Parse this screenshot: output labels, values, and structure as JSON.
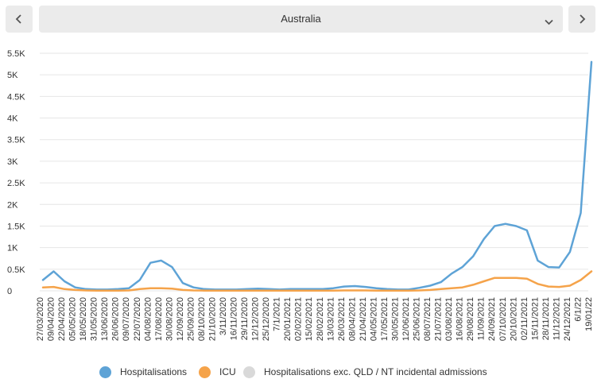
{
  "selector": {
    "value": "Australia"
  },
  "icons": {
    "prev": "chevron-left-icon",
    "next": "chevron-right-icon",
    "dropdown": "chevron-down-icon"
  },
  "colors": {
    "hospitalisations": "#5ea3d6",
    "icu": "#f5a34a",
    "excluded": "#d9d9d9",
    "grid": "#e6e6e6"
  },
  "chart_data": {
    "type": "line",
    "title": "",
    "xlabel": "",
    "ylabel": "",
    "ylim": [
      0,
      5500
    ],
    "y_ticks": [
      0,
      500,
      1000,
      1500,
      2000,
      2500,
      3000,
      3500,
      4000,
      4500,
      5000,
      5500
    ],
    "y_tick_labels": [
      "0",
      "0.5K",
      "1K",
      "1.5K",
      "2K",
      "2.5K",
      "3K",
      "3.5K",
      "4K",
      "4.5K",
      "5K",
      "5.5K"
    ],
    "grid": true,
    "legend_position": "bottom",
    "x_tick_labels": [
      "27/03/2020",
      "09/04/2020",
      "22/04/2020",
      "05/05/2020",
      "18/05/2020",
      "31/05/2020",
      "13/06/2020",
      "26/06/2020",
      "09/07/2020",
      "22/07/2020",
      "04/08/2020",
      "17/08/2020",
      "30/08/2020",
      "12/09/2020",
      "25/09/2020",
      "08/10/2020",
      "21/10/2020",
      "3/11/2020",
      "16/11/2020",
      "29/11/2020",
      "12/12/2020",
      "25/12/2020",
      "7/1/2021",
      "20/01/2021",
      "02/02/2021",
      "15/02/2021",
      "28/02/2021",
      "13/03/2021",
      "26/03/2021",
      "08/04/2021",
      "21/04/2021",
      "04/05/2021",
      "17/05/2021",
      "30/05/2021",
      "12/06/2021",
      "25/06/2021",
      "08/07/2021",
      "21/07/2021",
      "03/08/2021",
      "16/08/2021",
      "29/08/2021",
      "11/09/2021",
      "24/09/2021",
      "07/10/2021",
      "20/10/2021",
      "02/11/2021",
      "15/11/2021",
      "28/11/2021",
      "11/12/2021",
      "24/12/2021",
      "6/1/22",
      "19/01/22"
    ],
    "series": [
      {
        "name": "Hospitalisations",
        "color": "#5ea3d6",
        "x": [
          0,
          1,
          2,
          3,
          4,
          5,
          6,
          7,
          8,
          9,
          10,
          11,
          12,
          13,
          14,
          15,
          16,
          17,
          18,
          19,
          20,
          21,
          22,
          23,
          24,
          25,
          26,
          27,
          28,
          29,
          30,
          31,
          32,
          33,
          34,
          35,
          36,
          37,
          38,
          39,
          40,
          41,
          42,
          43,
          44,
          45,
          46,
          47,
          48,
          49,
          50,
          51
        ],
        "values": [
          250,
          450,
          220,
          80,
          40,
          30,
          30,
          40,
          60,
          250,
          650,
          700,
          550,
          180,
          80,
          40,
          30,
          30,
          30,
          40,
          50,
          40,
          30,
          40,
          40,
          40,
          40,
          60,
          100,
          110,
          90,
          60,
          40,
          30,
          30,
          70,
          120,
          200,
          400,
          550,
          800,
          1200,
          1500,
          1550,
          1500,
          1400,
          700,
          550,
          540,
          900,
          1800,
          5300
        ]
      },
      {
        "name": "ICU",
        "color": "#f5a34a",
        "x": [
          0,
          1,
          2,
          3,
          4,
          5,
          6,
          7,
          8,
          9,
          10,
          11,
          12,
          13,
          14,
          15,
          16,
          17,
          18,
          19,
          20,
          21,
          22,
          23,
          24,
          25,
          26,
          27,
          28,
          29,
          30,
          31,
          32,
          33,
          34,
          35,
          36,
          37,
          38,
          39,
          40,
          41,
          42,
          43,
          44,
          45,
          46,
          47,
          48,
          49,
          50,
          51
        ],
        "values": [
          80,
          90,
          40,
          20,
          10,
          5,
          5,
          5,
          10,
          40,
          60,
          60,
          50,
          20,
          10,
          5,
          5,
          5,
          5,
          5,
          5,
          5,
          5,
          5,
          5,
          5,
          5,
          5,
          10,
          10,
          10,
          5,
          5,
          5,
          5,
          10,
          20,
          40,
          60,
          80,
          140,
          220,
          300,
          300,
          300,
          280,
          160,
          100,
          90,
          120,
          250,
          450
        ]
      },
      {
        "name": "Hospitalisations exc. QLD / NT incidental admissions",
        "color": "#d9d9d9",
        "x": [],
        "values": []
      }
    ]
  }
}
